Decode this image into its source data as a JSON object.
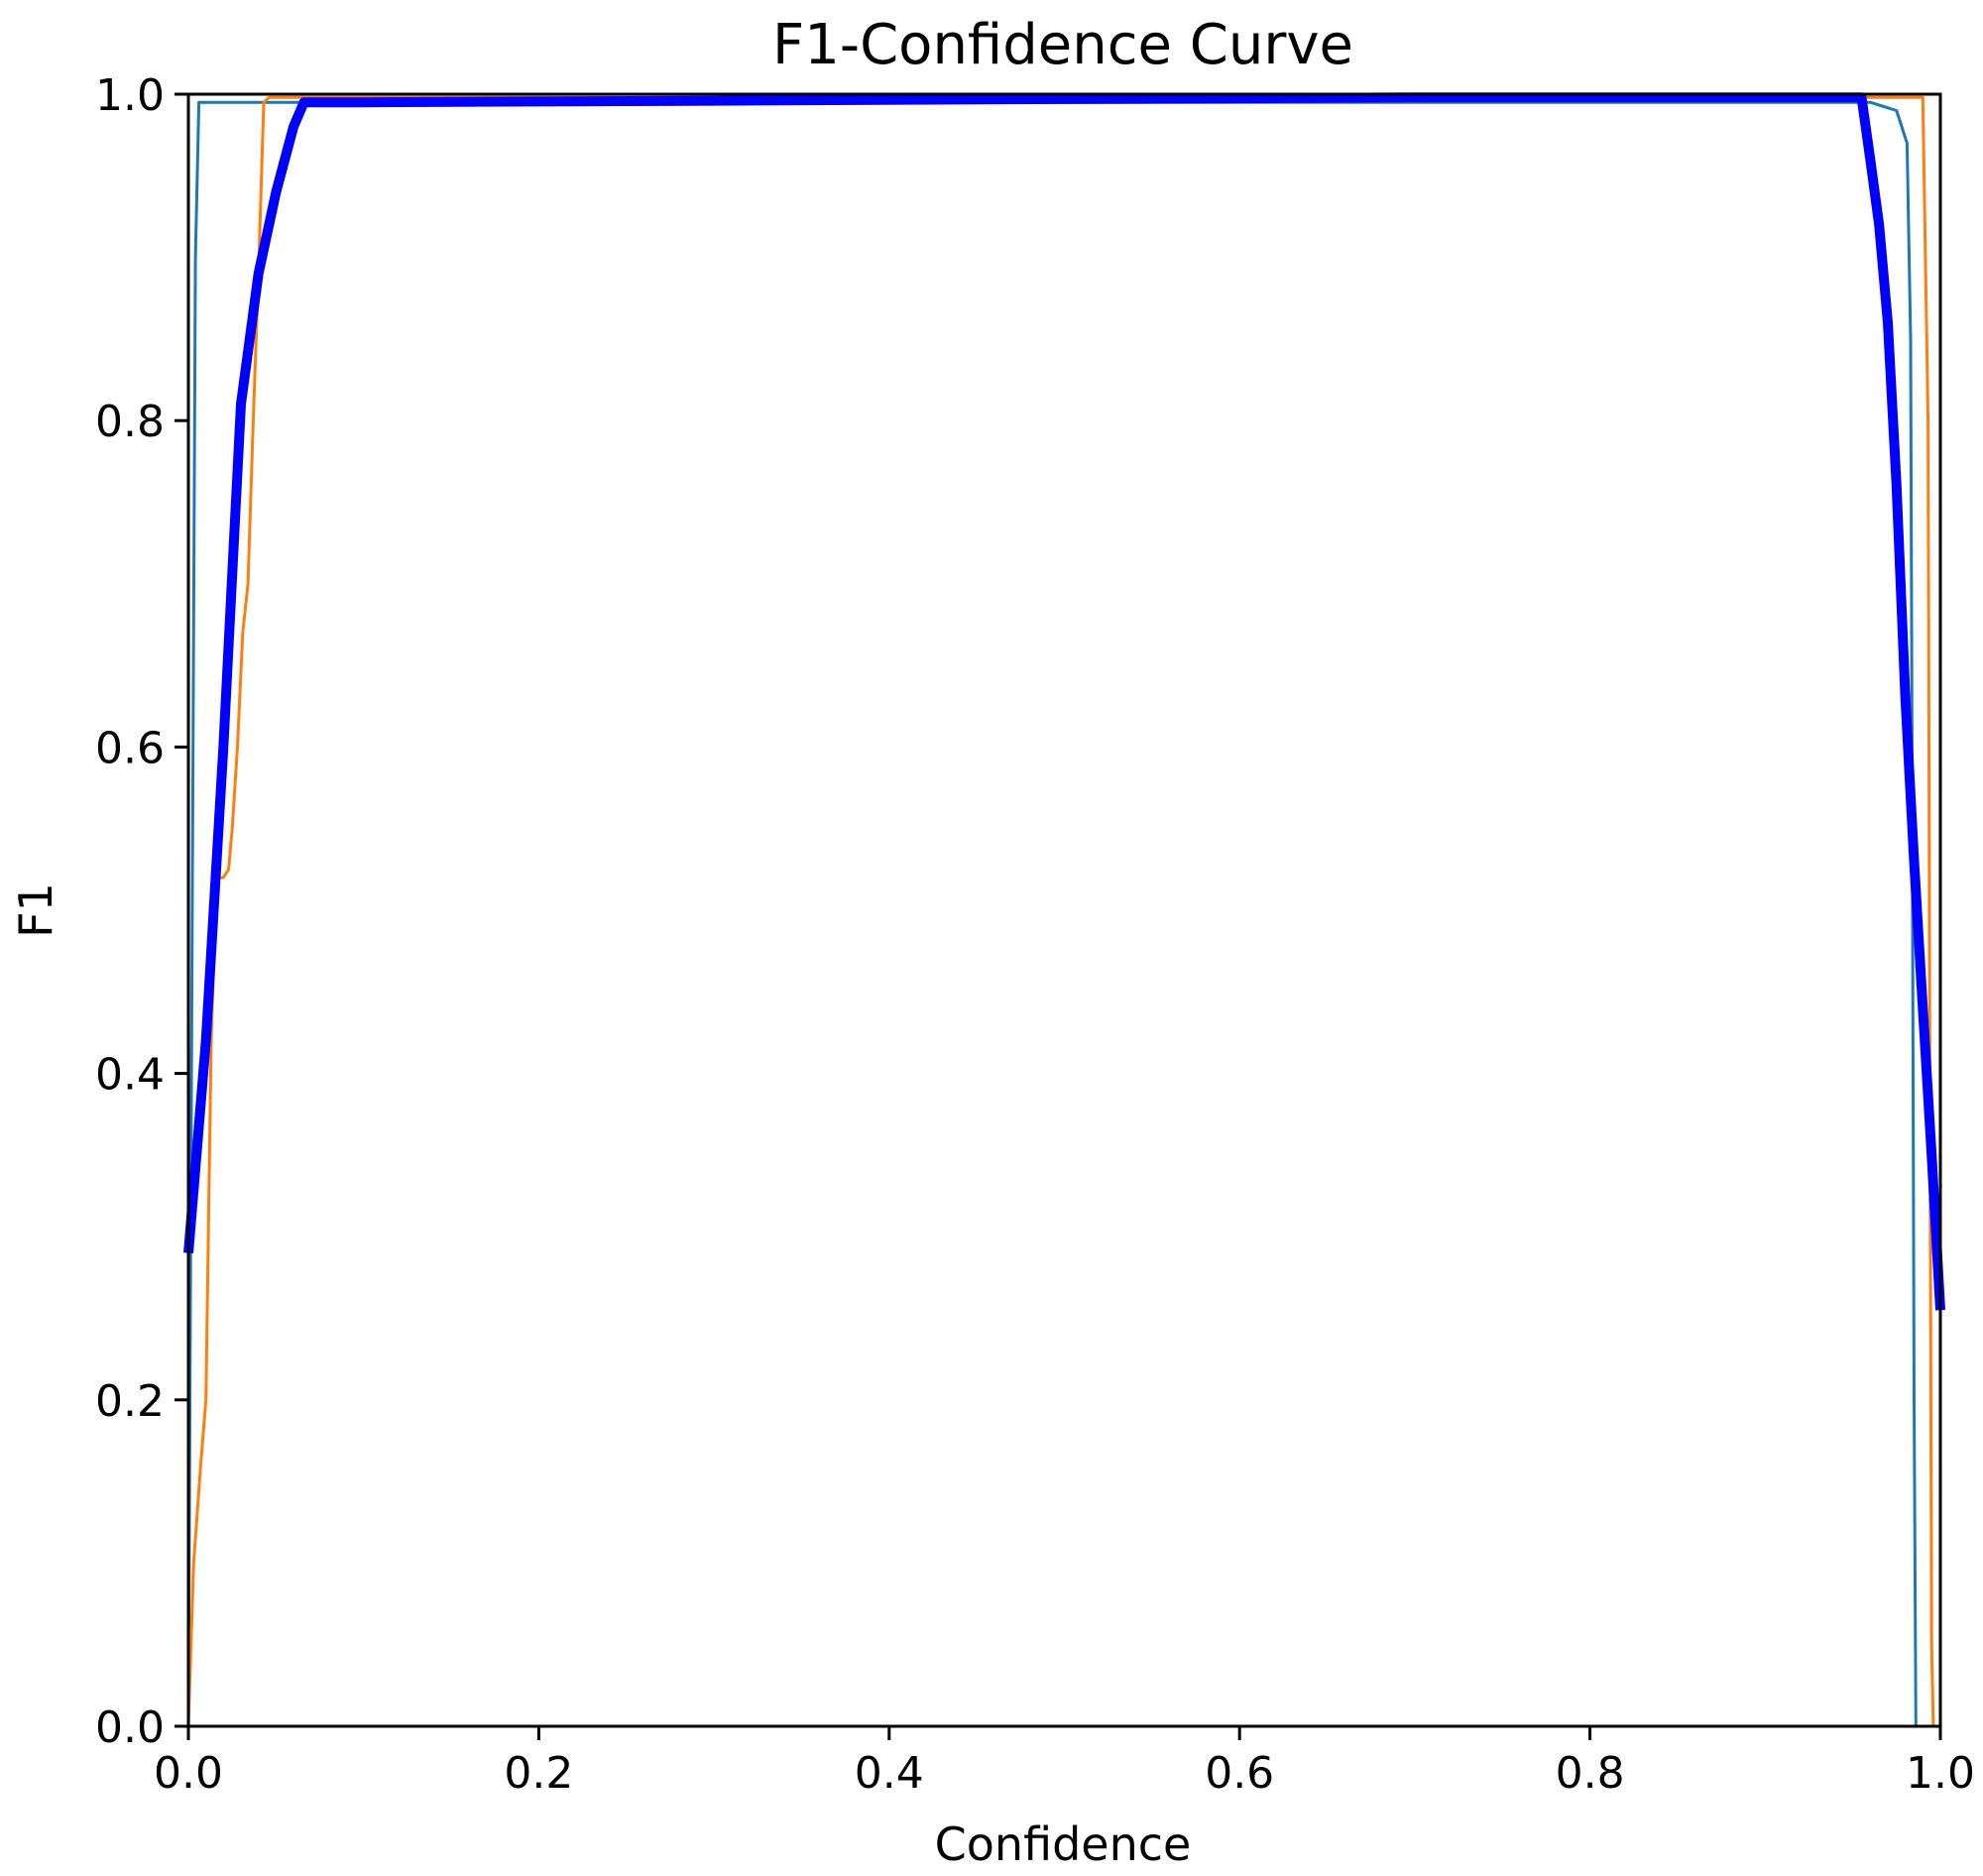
{
  "chart_data": {
    "type": "line",
    "title": "F1-Confidence Curve",
    "xlabel": "Confidence",
    "ylabel": "F1",
    "xlim": [
      0,
      1
    ],
    "ylim": [
      0,
      1
    ],
    "x_ticks": [
      "0.0",
      "0.2",
      "0.4",
      "0.6",
      "0.8",
      "1.0"
    ],
    "y_ticks": [
      "0.0",
      "0.2",
      "0.4",
      "0.6",
      "0.8",
      "1.0"
    ],
    "grid": false,
    "legend": "none",
    "series": [
      {
        "color": "#1f77b4",
        "x": [
          0.0,
          0.002,
          0.004,
          0.006,
          0.03,
          0.3,
          0.6,
          0.9,
          0.96,
          0.975,
          0.981,
          0.983,
          0.984,
          0.985,
          0.986,
          0.988
        ],
        "y": [
          0.0,
          0.45,
          0.9,
          0.995,
          0.995,
          0.995,
          0.995,
          0.995,
          0.995,
          0.99,
          0.97,
          0.85,
          0.55,
          0.2,
          0.0,
          0.0
        ]
      },
      {
        "color": "#ff7f0e",
        "x": [
          0.0,
          0.003,
          0.007,
          0.01,
          0.013,
          0.016,
          0.02,
          0.023,
          0.025,
          0.028,
          0.031,
          0.034,
          0.037,
          0.04,
          0.043,
          0.046,
          0.06,
          0.3,
          0.6,
          0.9,
          0.99,
          0.993,
          0.994,
          0.995,
          0.996,
          0.998
        ],
        "y": [
          0.0,
          0.1,
          0.16,
          0.2,
          0.42,
          0.52,
          0.52,
          0.525,
          0.55,
          0.6,
          0.67,
          0.7,
          0.8,
          0.89,
          0.995,
          0.998,
          0.998,
          0.998,
          0.998,
          0.998,
          0.998,
          0.8,
          0.4,
          0.05,
          0.0,
          0.0
        ]
      },
      {
        "color": "#0000ff",
        "x": [
          0.0,
          0.01,
          0.02,
          0.03,
          0.04,
          0.05,
          0.06,
          0.066,
          0.1,
          0.3,
          0.5,
          0.7,
          0.9,
          0.955,
          0.96,
          0.965,
          0.97,
          0.975,
          0.98,
          0.985,
          0.99,
          0.995,
          1.0
        ],
        "y": [
          0.29,
          0.42,
          0.6,
          0.81,
          0.89,
          0.94,
          0.98,
          0.995,
          0.995,
          0.996,
          0.997,
          0.998,
          0.998,
          0.998,
          0.96,
          0.92,
          0.86,
          0.76,
          0.63,
          0.53,
          0.44,
          0.35,
          0.255
        ]
      }
    ]
  }
}
